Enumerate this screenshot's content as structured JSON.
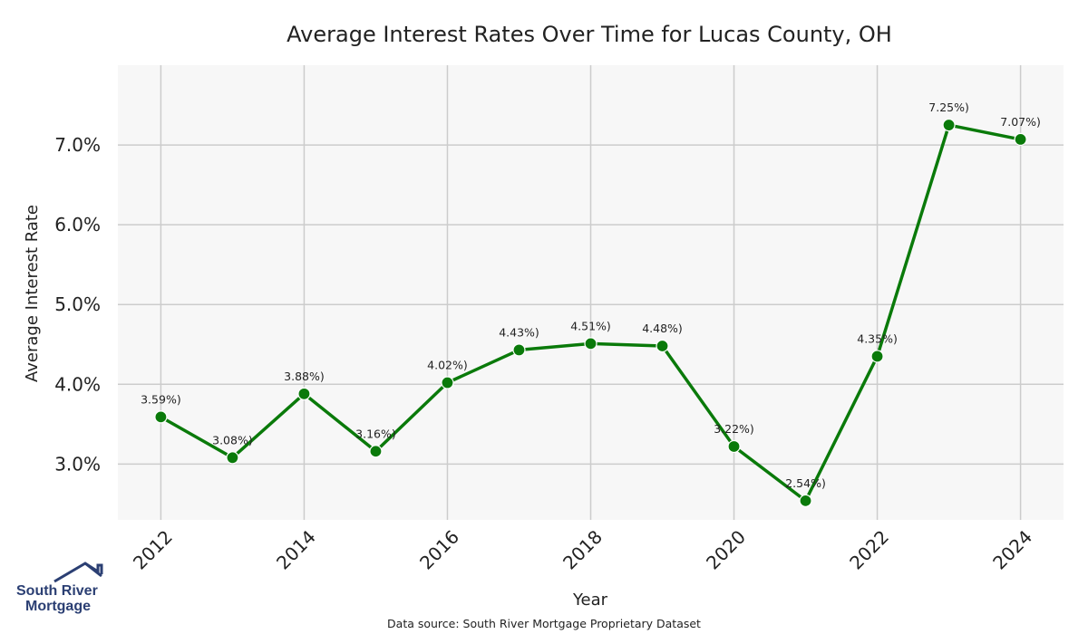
{
  "chart_data": {
    "type": "line",
    "title": "Average Interest Rates Over Time for Lucas County, OH",
    "xlabel": "Year",
    "ylabel": "Average Interest Rate",
    "x": [
      2012,
      2013,
      2014,
      2015,
      2016,
      2017,
      2018,
      2019,
      2020,
      2021,
      2022,
      2023,
      2024
    ],
    "series": [
      {
        "values": [
          3.59,
          3.08,
          3.88,
          3.16,
          4.02,
          4.43,
          4.51,
          4.48,
          3.22,
          2.54,
          4.35,
          7.25,
          7.07
        ],
        "data_labels": [
          "3.59%)",
          "3.08%)",
          "3.88%)",
          "3.16%)",
          "4.02%)",
          "4.43%)",
          "4.51%)",
          "4.48%)",
          "3.22%)",
          "2.54%)",
          "4.35%)",
          "7.25%)",
          "7.07%)"
        ],
        "color": "#0a7a0a"
      }
    ],
    "x_ticks": [
      "2012",
      "2014",
      "2016",
      "2018",
      "2020",
      "2022",
      "2024"
    ],
    "y_ticks": [
      "3.0%",
      "4.0%",
      "5.0%",
      "6.0%",
      "7.0%"
    ],
    "xlim": [
      2011.4,
      2024.6
    ],
    "ylim": [
      2.3,
      8.0
    ],
    "grid": true,
    "background_color": "#f7f7f7",
    "grid_color": "#cccccc"
  },
  "source_note": "Data source: South River Mortgage Proprietary Dataset",
  "logo": {
    "line1": "South River",
    "line2": "Mortgage",
    "color": "#2b3f73"
  }
}
